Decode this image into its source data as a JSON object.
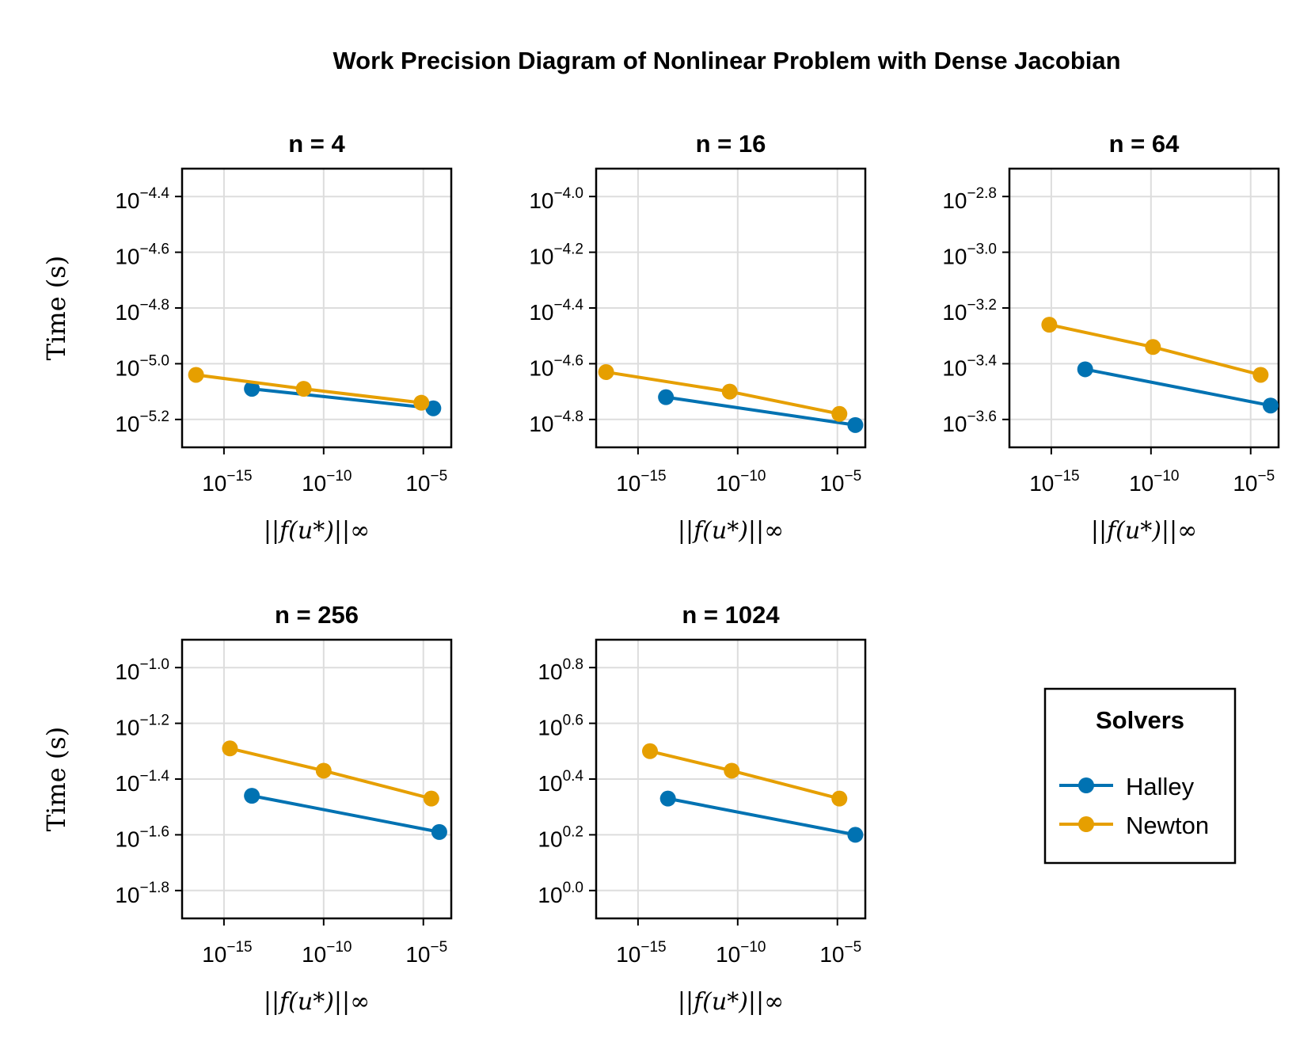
{
  "figure_title": "Work Precision Diagram of Nonlinear Problem with Dense Jacobian",
  "legend": {
    "title": "Solvers",
    "entries": [
      {
        "name": "Halley",
        "color": "#0072b2"
      },
      {
        "name": "Newton",
        "color": "#e69f00"
      }
    ]
  },
  "colors": {
    "Halley": "#0072b2",
    "Newton": "#e69f00",
    "grid": "#dddddd"
  },
  "chart_data": [
    {
      "type": "line",
      "title": "n = 4",
      "xlabel": "||f(u*)||∞",
      "ylabel": "Time (s)",
      "x_scale": "log10",
      "y_scale": "log10",
      "xlim_log10": [
        -17.1,
        -3.6
      ],
      "ylim_log10": [
        -5.3,
        -4.3
      ],
      "x_ticks": [
        {
          "log": -15,
          "base": "10",
          "exp": "−15"
        },
        {
          "log": -10,
          "base": "10",
          "exp": "−10"
        },
        {
          "log": -5,
          "base": "10",
          "exp": "−5"
        }
      ],
      "y_ticks": [
        {
          "log": -5.2,
          "base": "10",
          "exp": "−5.2"
        },
        {
          "log": -5.0,
          "base": "10",
          "exp": "−5.0"
        },
        {
          "log": -4.8,
          "base": "10",
          "exp": "−4.8"
        },
        {
          "log": -4.6,
          "base": "10",
          "exp": "−4.6"
        },
        {
          "log": -4.4,
          "base": "10",
          "exp": "−4.4"
        }
      ],
      "series": [
        {
          "name": "Halley",
          "x_log10": [
            -13.6,
            -4.5
          ],
          "y_log10": [
            -5.09,
            -5.16
          ]
        },
        {
          "name": "Newton",
          "x_log10": [
            -16.4,
            -11.0,
            -5.1
          ],
          "y_log10": [
            -5.04,
            -5.09,
            -5.14
          ]
        }
      ]
    },
    {
      "type": "line",
      "title": "n = 16",
      "xlabel": "||f(u*)||∞",
      "ylabel": "",
      "x_scale": "log10",
      "y_scale": "log10",
      "xlim_log10": [
        -17.1,
        -3.6
      ],
      "ylim_log10": [
        -4.9,
        -3.9
      ],
      "x_ticks": [
        {
          "log": -15,
          "base": "10",
          "exp": "−15"
        },
        {
          "log": -10,
          "base": "10",
          "exp": "−10"
        },
        {
          "log": -5,
          "base": "10",
          "exp": "−5"
        }
      ],
      "y_ticks": [
        {
          "log": -4.8,
          "base": "10",
          "exp": "−4.8"
        },
        {
          "log": -4.6,
          "base": "10",
          "exp": "−4.6"
        },
        {
          "log": -4.4,
          "base": "10",
          "exp": "−4.4"
        },
        {
          "log": -4.2,
          "base": "10",
          "exp": "−4.2"
        },
        {
          "log": -4.0,
          "base": "10",
          "exp": "−4.0"
        }
      ],
      "series": [
        {
          "name": "Halley",
          "x_log10": [
            -13.6,
            -4.1
          ],
          "y_log10": [
            -4.72,
            -4.82
          ]
        },
        {
          "name": "Newton",
          "x_log10": [
            -16.6,
            -10.4,
            -4.9
          ],
          "y_log10": [
            -4.63,
            -4.7,
            -4.78
          ]
        }
      ]
    },
    {
      "type": "line",
      "title": "n = 64",
      "xlabel": "||f(u*)||∞",
      "ylabel": "",
      "x_scale": "log10",
      "y_scale": "log10",
      "xlim_log10": [
        -17.1,
        -3.6
      ],
      "ylim_log10": [
        -3.7,
        -2.7
      ],
      "x_ticks": [
        {
          "log": -15,
          "base": "10",
          "exp": "−15"
        },
        {
          "log": -10,
          "base": "10",
          "exp": "−10"
        },
        {
          "log": -5,
          "base": "10",
          "exp": "−5"
        }
      ],
      "y_ticks": [
        {
          "log": -3.6,
          "base": "10",
          "exp": "−3.6"
        },
        {
          "log": -3.4,
          "base": "10",
          "exp": "−3.4"
        },
        {
          "log": -3.2,
          "base": "10",
          "exp": "−3.2"
        },
        {
          "log": -3.0,
          "base": "10",
          "exp": "−3.0"
        },
        {
          "log": -2.8,
          "base": "10",
          "exp": "−2.8"
        }
      ],
      "series": [
        {
          "name": "Halley",
          "x_log10": [
            -13.3,
            -4.0
          ],
          "y_log10": [
            -3.42,
            -3.55
          ]
        },
        {
          "name": "Newton",
          "x_log10": [
            -15.1,
            -9.9,
            -4.5
          ],
          "y_log10": [
            -3.26,
            -3.34,
            -3.44
          ]
        }
      ]
    },
    {
      "type": "line",
      "title": "n = 256",
      "xlabel": "||f(u*)||∞",
      "ylabel": "Time (s)",
      "x_scale": "log10",
      "y_scale": "log10",
      "xlim_log10": [
        -17.1,
        -3.6
      ],
      "ylim_log10": [
        -1.9,
        -0.9
      ],
      "x_ticks": [
        {
          "log": -15,
          "base": "10",
          "exp": "−15"
        },
        {
          "log": -10,
          "base": "10",
          "exp": "−10"
        },
        {
          "log": -5,
          "base": "10",
          "exp": "−5"
        }
      ],
      "y_ticks": [
        {
          "log": -1.8,
          "base": "10",
          "exp": "−1.8"
        },
        {
          "log": -1.6,
          "base": "10",
          "exp": "−1.6"
        },
        {
          "log": -1.4,
          "base": "10",
          "exp": "−1.4"
        },
        {
          "log": -1.2,
          "base": "10",
          "exp": "−1.2"
        },
        {
          "log": -1.0,
          "base": "10",
          "exp": "−1.0"
        }
      ],
      "series": [
        {
          "name": "Halley",
          "x_log10": [
            -13.6,
            -4.2
          ],
          "y_log10": [
            -1.46,
            -1.59
          ]
        },
        {
          "name": "Newton",
          "x_log10": [
            -14.7,
            -10.0,
            -4.6
          ],
          "y_log10": [
            -1.29,
            -1.37,
            -1.47
          ]
        }
      ]
    },
    {
      "type": "line",
      "title": "n = 1024",
      "xlabel": "||f(u*)||∞",
      "ylabel": "",
      "x_scale": "log10",
      "y_scale": "log10",
      "xlim_log10": [
        -17.1,
        -3.6
      ],
      "ylim_log10": [
        -0.1,
        0.9
      ],
      "x_ticks": [
        {
          "log": -15,
          "base": "10",
          "exp": "−15"
        },
        {
          "log": -10,
          "base": "10",
          "exp": "−10"
        },
        {
          "log": -5,
          "base": "10",
          "exp": "−5"
        }
      ],
      "y_ticks": [
        {
          "log": 0.0,
          "base": "10",
          "exp": "0.0"
        },
        {
          "log": 0.2,
          "base": "10",
          "exp": "0.2"
        },
        {
          "log": 0.4,
          "base": "10",
          "exp": "0.4"
        },
        {
          "log": 0.6,
          "base": "10",
          "exp": "0.6"
        },
        {
          "log": 0.8,
          "base": "10",
          "exp": "0.8"
        }
      ],
      "series": [
        {
          "name": "Halley",
          "x_log10": [
            -13.5,
            -4.1
          ],
          "y_log10": [
            0.33,
            0.2
          ]
        },
        {
          "name": "Newton",
          "x_log10": [
            -14.4,
            -10.3,
            -4.9
          ],
          "y_log10": [
            0.5,
            0.43,
            0.33
          ]
        }
      ]
    }
  ]
}
